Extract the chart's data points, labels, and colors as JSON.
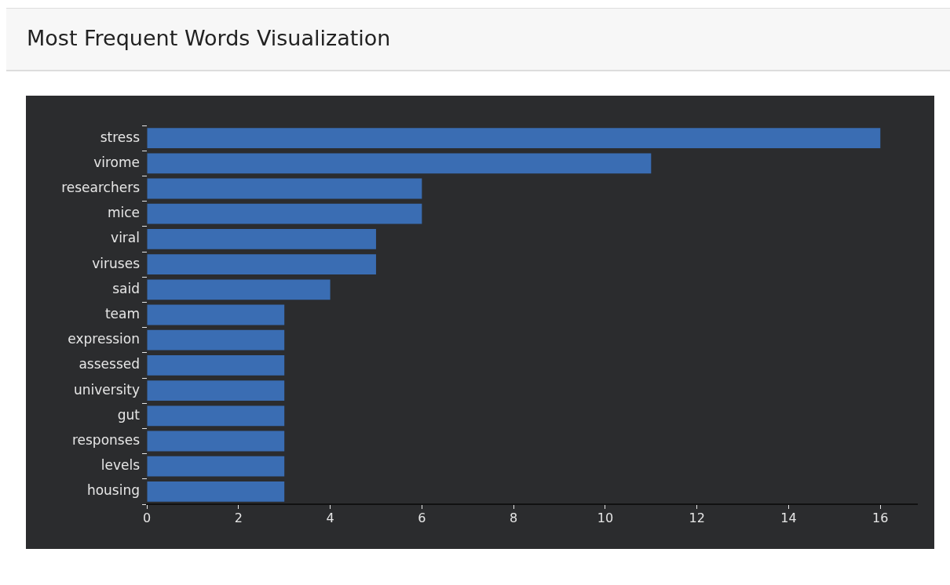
{
  "chart_data": {
    "type": "bar",
    "title": "Most Frequent Words Visualization",
    "orientation": "horizontal",
    "categories": [
      "stress",
      "virome",
      "researchers",
      "mice",
      "viral",
      "viruses",
      "said",
      "team",
      "expression",
      "assessed",
      "university",
      "gut",
      "responses",
      "levels",
      "housing"
    ],
    "values": [
      16,
      11,
      6,
      6,
      5,
      5,
      4,
      3,
      3,
      3,
      3,
      3,
      3,
      3,
      3
    ],
    "color": "#3a6db3",
    "xlim": [
      0,
      16.8
    ],
    "xticks": [
      0,
      2,
      4,
      6,
      8,
      10,
      12,
      14,
      16
    ],
    "grid": false,
    "legend": false
  }
}
